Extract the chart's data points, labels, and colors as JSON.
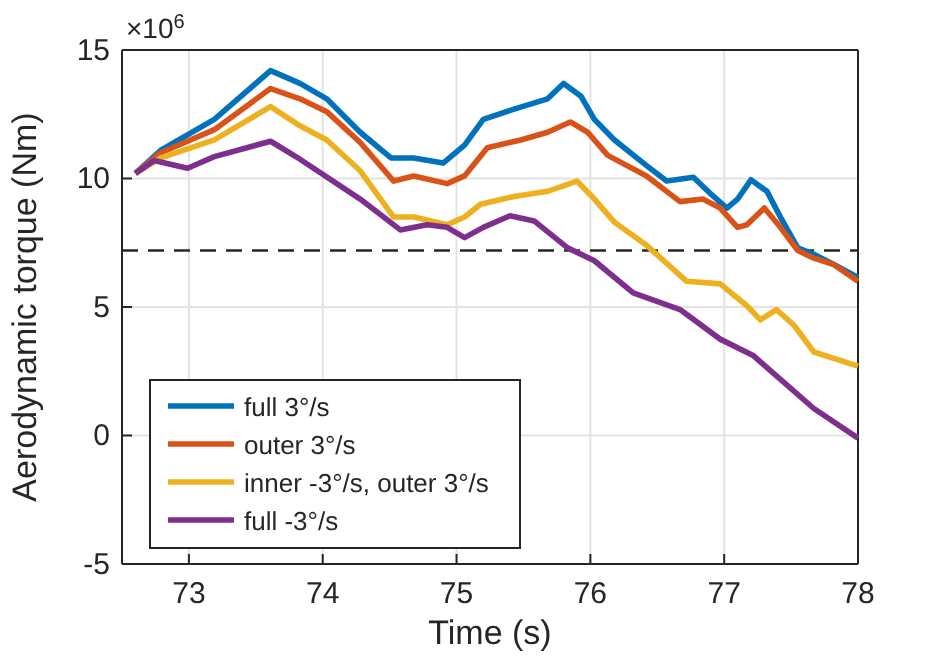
{
  "chart_data": {
    "type": "line",
    "xlabel": "Time (s)",
    "ylabel": "Aerodynamic torque (Nm)",
    "annotations": [
      "×10$^{6}$"
    ],
    "xlim": [
      72.5,
      78
    ],
    "xticks": [
      73,
      74,
      75,
      76,
      77,
      78
    ],
    "ylim": [
      -5,
      15
    ],
    "yticks": [
      -5,
      0,
      5,
      10,
      15
    ],
    "grid": true,
    "legend": "bottom left",
    "line_style": "solid",
    "ref_lines": [
      {
        "axis": "y",
        "value": 7.2,
        "color": "#262626",
        "line_style": "dashed"
      }
    ],
    "series": [
      {
        "name": "full 3°/s",
        "color": "#0072bd",
        "x": [
          72.6,
          72.79,
          73.19,
          73.61,
          73.83,
          74.03,
          74.28,
          74.51,
          74.68,
          74.9,
          75.06,
          75.2,
          75.43,
          75.68,
          75.8,
          75.93,
          76.03,
          76.18,
          76.42,
          76.57,
          76.77,
          76.9,
          77.02,
          77.1,
          77.2,
          77.32,
          77.42,
          77.55,
          77.67,
          77.82,
          78
        ],
        "values": [
          10.2,
          11.1,
          12.3,
          14.2,
          13.7,
          13.1,
          11.8,
          10.8,
          10.8,
          10.6,
          11.3,
          12.3,
          12.7,
          13.1,
          13.7,
          13.2,
          12.3,
          11.5,
          10.5,
          9.9,
          10.05,
          9.4,
          8.85,
          9.2,
          9.95,
          9.5,
          8.5,
          7.3,
          7.05,
          6.65,
          6.15
        ]
      },
      {
        "name": "outer 3°/s",
        "color": "#d95319",
        "x": [
          72.6,
          72.79,
          73.19,
          73.61,
          73.83,
          74.03,
          74.28,
          74.53,
          74.68,
          74.93,
          75.06,
          75.23,
          75.48,
          75.68,
          75.85,
          75.98,
          76.13,
          76.42,
          76.67,
          76.84,
          76.97,
          77.1,
          77.17,
          77.3,
          77.42,
          77.55,
          77.67,
          77.82,
          78
        ],
        "values": [
          10.2,
          11.0,
          11.9,
          13.5,
          13.1,
          12.6,
          11.4,
          9.9,
          10.1,
          9.8,
          10.1,
          11.2,
          11.5,
          11.8,
          12.2,
          11.8,
          10.9,
          10.1,
          9.1,
          9.2,
          8.85,
          8.1,
          8.2,
          8.85,
          8.1,
          7.2,
          6.9,
          6.65,
          6.0
        ]
      },
      {
        "name": "inner -3°/s, outer 3°/s",
        "color": "#edb120",
        "x": [
          72.6,
          72.79,
          73.19,
          73.61,
          73.83,
          74.03,
          74.28,
          74.53,
          74.68,
          74.93,
          75.06,
          75.18,
          75.43,
          75.68,
          75.9,
          76.03,
          76.18,
          76.42,
          76.72,
          76.97,
          77.17,
          77.27,
          77.39,
          77.52,
          77.67,
          78
        ],
        "values": [
          10.2,
          10.8,
          11.5,
          12.8,
          12.05,
          11.5,
          10.3,
          8.5,
          8.5,
          8.2,
          8.5,
          9.0,
          9.3,
          9.5,
          9.9,
          9.2,
          8.3,
          7.4,
          6.0,
          5.9,
          5.05,
          4.5,
          4.9,
          4.3,
          3.25,
          2.7
        ]
      },
      {
        "name": "full -3°/s",
        "color": "#7e2f8e",
        "x": [
          72.6,
          72.74,
          72.99,
          73.19,
          73.61,
          73.83,
          74.28,
          74.58,
          74.78,
          74.93,
          75.06,
          75.2,
          75.4,
          75.58,
          75.83,
          76.03,
          76.32,
          76.67,
          76.97,
          77.22,
          77.67,
          78
        ],
        "values": [
          10.2,
          10.7,
          10.4,
          10.85,
          11.45,
          10.75,
          9.2,
          8.0,
          8.2,
          8.1,
          7.7,
          8.1,
          8.55,
          8.35,
          7.3,
          6.8,
          5.55,
          4.9,
          3.75,
          3.1,
          1.05,
          -0.1
        ]
      }
    ]
  }
}
